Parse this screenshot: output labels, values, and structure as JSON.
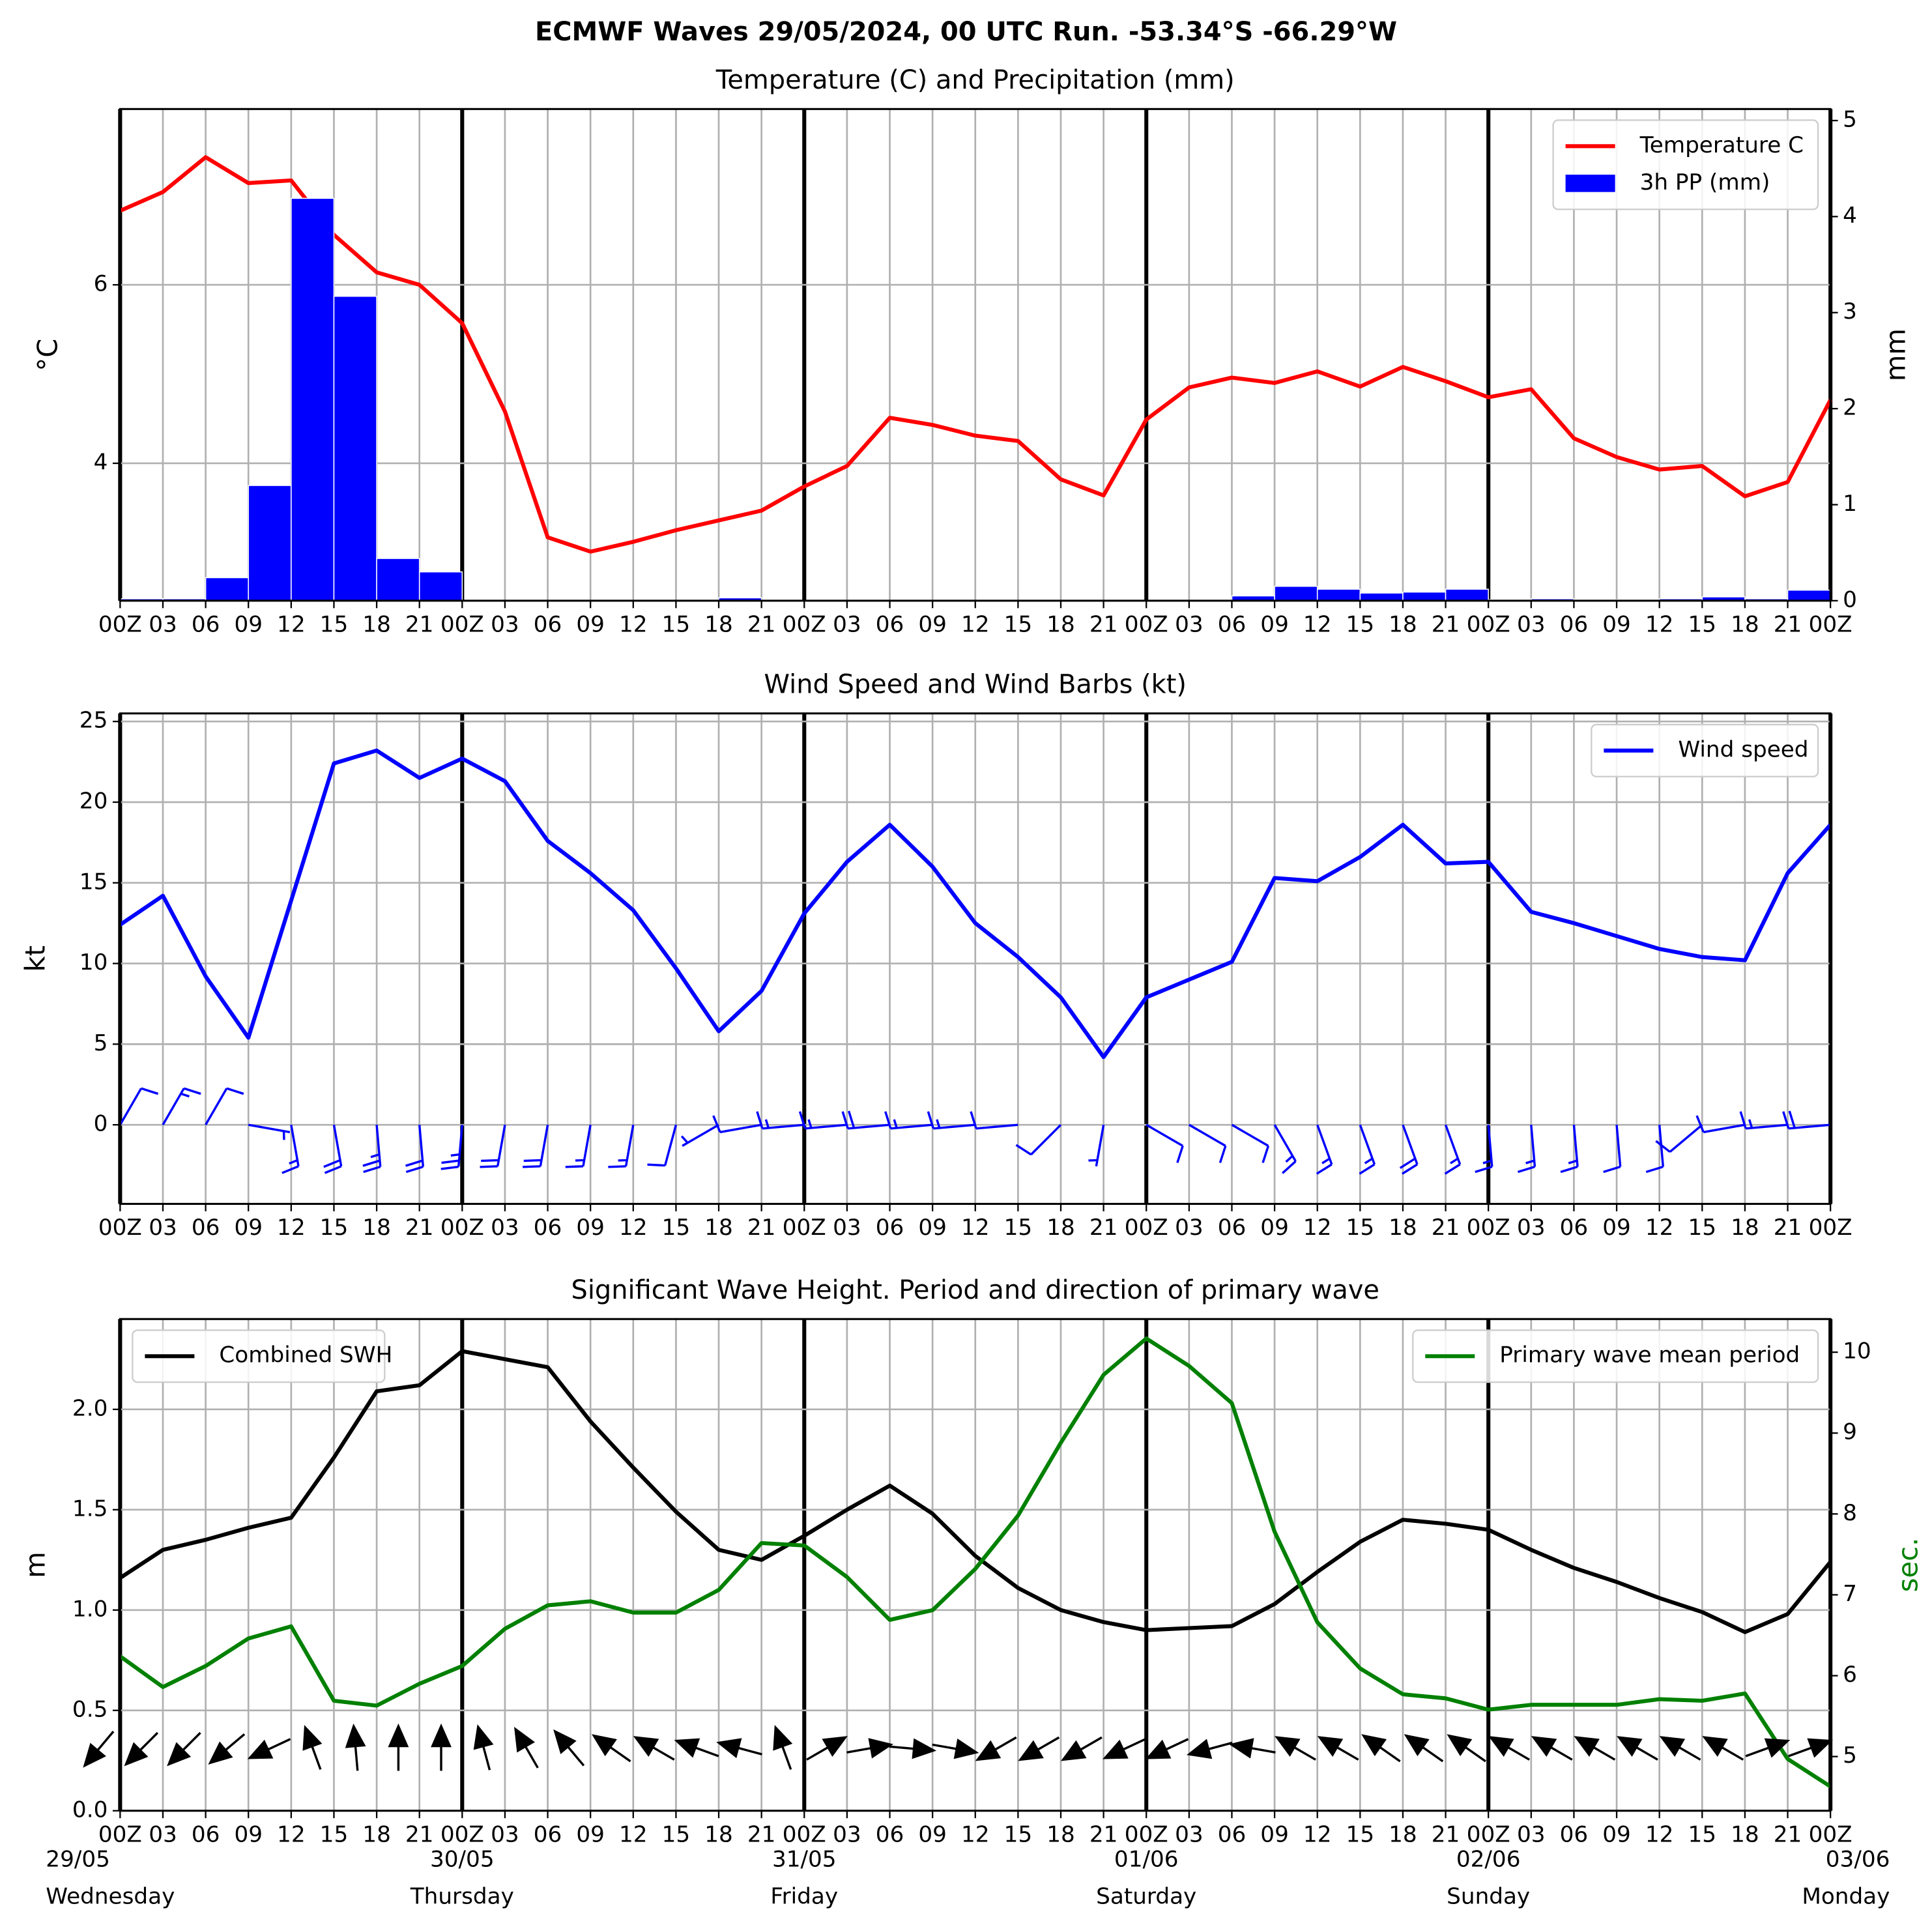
{
  "title": "ECMWF Waves 29/05/2024, 00 UTC Run. -53.34°S -66.29°W",
  "chart_data": [
    {
      "type": "line",
      "title": "Temperature (C) and Precipitation (mm)",
      "categories": [
        "00Z",
        "03",
        "06",
        "09",
        "12",
        "15",
        "18",
        "21",
        "00Z",
        "03",
        "06",
        "09",
        "12",
        "15",
        "18",
        "21",
        "00Z",
        "03",
        "06",
        "09",
        "12",
        "15",
        "18",
        "21",
        "00Z",
        "03",
        "06",
        "09",
        "12",
        "15",
        "18",
        "21",
        "00Z",
        "03",
        "06",
        "09",
        "12",
        "15",
        "18",
        "21",
        "00Z"
      ],
      "ylabel": "°C",
      "y2label": "mm",
      "ylim": [
        2.46,
        7.97
      ],
      "yticks": [
        4,
        6
      ],
      "y2lim": [
        0,
        5.12
      ],
      "y2ticks": [
        0,
        1,
        2,
        3,
        4,
        5
      ],
      "grid": true,
      "legend": "upper right",
      "series": [
        {
          "name": "Temperature C",
          "color": "#ff0000",
          "values": [
            6.83,
            7.04,
            7.43,
            7.14,
            7.17,
            6.56,
            6.14,
            6.0,
            5.57,
            4.58,
            3.17,
            3.01,
            3.12,
            3.25,
            3.36,
            3.47,
            3.74,
            3.97,
            4.51,
            4.43,
            4.31,
            4.25,
            3.82,
            3.64,
            4.49,
            4.85,
            4.96,
            4.9,
            5.03,
            4.86,
            5.08,
            4.92,
            4.74,
            4.83,
            4.28,
            4.07,
            3.93,
            3.97,
            3.63,
            3.79,
            4.71
          ]
        },
        {
          "name": "3h PP (mm)",
          "color": "#0000ff",
          "type": "bar",
          "axis": "y2",
          "values": [
            0.02,
            0.02,
            0.24,
            1.2,
            4.19,
            3.17,
            0.44,
            0.3,
            0,
            0,
            0,
            0,
            0,
            0,
            0.03,
            0,
            0,
            0,
            0,
            0,
            0,
            0,
            0,
            0,
            0,
            0,
            0.05,
            0.15,
            0.12,
            0.08,
            0.09,
            0.12,
            0.01,
            0.02,
            0.01,
            0.01,
            0.02,
            0.04,
            0.02,
            0.11,
            null
          ]
        }
      ]
    },
    {
      "type": "line",
      "title": "Wind Speed and Wind Barbs (kt)",
      "categories": [
        "00Z",
        "03",
        "06",
        "09",
        "12",
        "15",
        "18",
        "21",
        "00Z",
        "03",
        "06",
        "09",
        "12",
        "15",
        "18",
        "21",
        "00Z",
        "03",
        "06",
        "09",
        "12",
        "15",
        "18",
        "21",
        "00Z",
        "03",
        "06",
        "09",
        "12",
        "15",
        "18",
        "21",
        "00Z",
        "03",
        "06",
        "09",
        "12",
        "15",
        "18",
        "21",
        "00Z"
      ],
      "ylabel": "kt",
      "ylim": [
        -4.9,
        25.5
      ],
      "yticks": [
        0,
        5,
        10,
        15,
        20,
        25
      ],
      "grid": true,
      "legend": "upper right",
      "series": [
        {
          "name": "Wind speed",
          "color": "#0000ff",
          "values": [
            12.4,
            14.2,
            9.2,
            5.4,
            13.9,
            22.4,
            23.2,
            21.5,
            22.7,
            21.3,
            17.6,
            15.6,
            13.3,
            9.7,
            5.8,
            8.3,
            13.1,
            16.3,
            18.6,
            16.0,
            12.5,
            10.4,
            7.9,
            4.2,
            7.9,
            9.0,
            10.1,
            15.3,
            15.1,
            16.6,
            18.6,
            16.2,
            16.3,
            13.2,
            12.5,
            11.7,
            10.9,
            10.4,
            10.2,
            15.6,
            18.6
          ]
        }
      ],
      "barb_color": "#0000ff",
      "wind_direction": [
        30,
        30,
        30,
        100,
        170,
        170,
        175,
        175,
        185,
        190,
        190,
        190,
        190,
        195,
        240,
        260,
        265,
        265,
        265,
        265,
        265,
        265,
        225,
        190,
        120,
        120,
        120,
        150,
        160,
        160,
        160,
        160,
        175,
        175,
        175,
        175,
        175,
        230,
        260,
        265,
        265
      ]
    },
    {
      "type": "line",
      "title": "Significant Wave Height. Period and direction of primary wave",
      "categories": [
        "00Z",
        "03",
        "06",
        "09",
        "12",
        "15",
        "18",
        "21",
        "00Z",
        "03",
        "06",
        "09",
        "12",
        "15",
        "18",
        "21",
        "00Z",
        "03",
        "06",
        "09",
        "12",
        "15",
        "18",
        "21",
        "00Z",
        "03",
        "06",
        "09",
        "12",
        "15",
        "18",
        "21",
        "00Z",
        "03",
        "06",
        "09",
        "12",
        "15",
        "18",
        "21",
        "00Z"
      ],
      "day_labels": {
        "dates": [
          "29/05",
          "30/05",
          "31/05",
          "01/06",
          "02/06",
          "03/06"
        ],
        "weekdays": [
          "Wednesday",
          "Thursday",
          "Friday",
          "Saturday",
          "Sunday",
          "Monday"
        ]
      },
      "ylabel": "m",
      "y2label": "sec.",
      "y2color": "#008000",
      "ylim": [
        0,
        2.45
      ],
      "yticks": [
        {
          "value": 0,
          "label": "0.0"
        },
        {
          "value": 0.5,
          "label": "0.5"
        },
        {
          "value": 1,
          "label": "1.0"
        },
        {
          "value": 1.5,
          "label": "1.5"
        },
        {
          "value": 2,
          "label": "2.0"
        }
      ],
      "y2lim": [
        4.33,
        10.41
      ],
      "y2ticks": [
        5,
        6,
        7,
        8,
        9,
        10
      ],
      "grid": true,
      "series": [
        {
          "name": "Combined SWH",
          "color": "#000000",
          "legend": "upper left",
          "values": [
            1.16,
            1.3,
            1.35,
            1.41,
            1.46,
            1.76,
            2.09,
            2.12,
            2.29,
            2.25,
            2.21,
            1.94,
            1.71,
            1.49,
            1.3,
            1.25,
            1.37,
            1.5,
            1.62,
            1.48,
            1.27,
            1.11,
            1.0,
            0.94,
            0.9,
            0.91,
            0.92,
            1.03,
            1.19,
            1.34,
            1.45,
            1.43,
            1.4,
            1.3,
            1.21,
            1.14,
            1.06,
            0.99,
            0.89,
            0.98,
            1.24
          ]
        },
        {
          "name": "Primary wave mean period",
          "color": "#008000",
          "axis": "y2",
          "legend": "upper right",
          "values": [
            6.24,
            5.86,
            6.12,
            6.46,
            6.61,
            5.69,
            5.63,
            5.9,
            6.12,
            6.58,
            6.87,
            6.92,
            6.78,
            6.78,
            7.06,
            7.64,
            7.61,
            7.22,
            6.69,
            6.81,
            7.32,
            7.98,
            8.88,
            9.72,
            10.17,
            9.83,
            9.37,
            7.78,
            6.66,
            6.09,
            5.77,
            5.72,
            5.58,
            5.64,
            5.64,
            5.64,
            5.71,
            5.69,
            5.78,
            4.97,
            4.63
          ]
        }
      ],
      "arrow_color": "#000000",
      "wave_direction": [
        220,
        225,
        225,
        230,
        245,
        340,
        355,
        0,
        0,
        345,
        330,
        320,
        305,
        300,
        290,
        285,
        340,
        60,
        80,
        95,
        100,
        240,
        240,
        240,
        245,
        245,
        255,
        280,
        300,
        300,
        305,
        305,
        305,
        300,
        300,
        300,
        300,
        300,
        300,
        70,
        70
      ]
    }
  ]
}
